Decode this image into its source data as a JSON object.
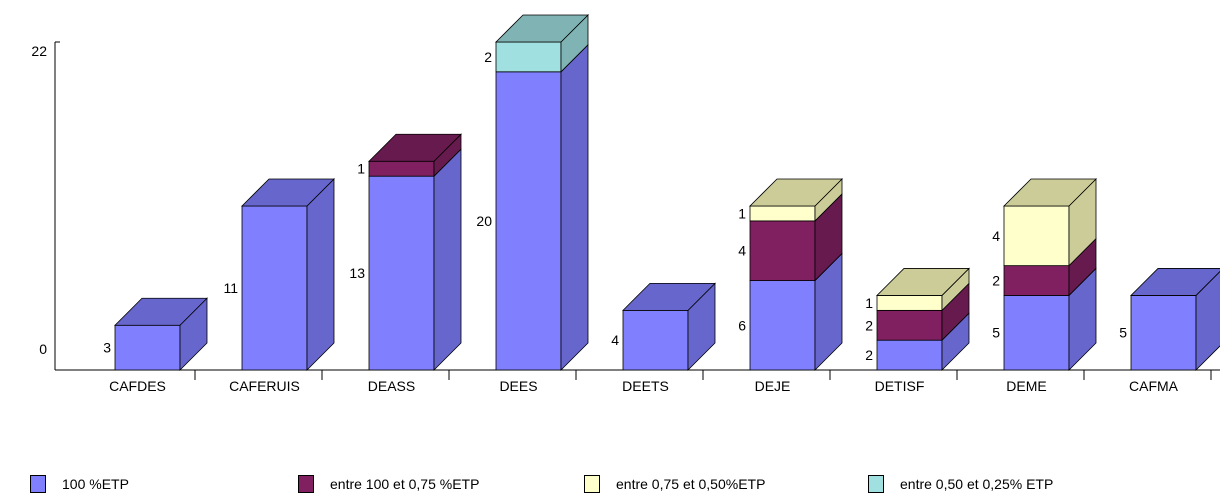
{
  "chart_data": {
    "type": "bar",
    "stacked": true,
    "style": "3d",
    "categories": [
      "CAFDES",
      "CAFERUIS",
      "DEASS",
      "DEES",
      "DEETS",
      "DEJE",
      "DETISF",
      "DEME",
      "CAFMA"
    ],
    "series": [
      {
        "name": "100 %ETP",
        "color": "#8080ff",
        "side_color": "#6666cc",
        "top_color": "#6666cc",
        "values": [
          3,
          11,
          13,
          20,
          4,
          6,
          2,
          5,
          5
        ]
      },
      {
        "name": "entre 100 et 0,75 %ETP",
        "color": "#802060",
        "side_color": "#661a4d",
        "top_color": "#661a4d",
        "values": [
          0,
          0,
          1,
          0,
          0,
          4,
          2,
          2,
          0
        ]
      },
      {
        "name": "entre 0,75 et 0,50%ETP",
        "color": "#ffffcc",
        "side_color": "#cccc99",
        "top_color": "#cccc99",
        "values": [
          0,
          0,
          0,
          0,
          0,
          1,
          1,
          4,
          0
        ]
      },
      {
        "name": "entre 0,50 et 0,25% ETP",
        "color": "#a0e0e0",
        "side_color": "#80b3b3",
        "top_color": "#80b3b3",
        "values": [
          0,
          0,
          0,
          2,
          0,
          0,
          0,
          0,
          0
        ]
      }
    ],
    "y_ticks": [
      "0",
      "22"
    ],
    "ylim": [
      0,
      22
    ],
    "legend_position": "bottom"
  }
}
